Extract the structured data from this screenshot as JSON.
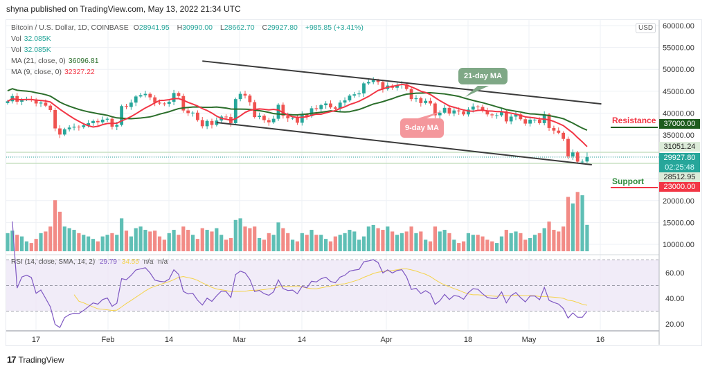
{
  "header": {
    "published": "shyna published on TradingView.com, May 13, 2022 21:34 UTC"
  },
  "legend": {
    "symbol": "Bitcoin / U.S. Dollar, 1D, COINBASE",
    "o_label": "O",
    "o": "28941.95",
    "h_label": "H",
    "h": "30990.00",
    "l_label": "L",
    "l": "28662.70",
    "c_label": "C",
    "c": "29927.80",
    "change": "+985.85 (+3.41%)",
    "vol1_label": "Vol",
    "vol1": "32.085K",
    "vol2_label": "Vol",
    "vol2": "32.085K",
    "ma21_label": "MA (21, close, 0)",
    "ma21": "36096.81",
    "ma9_label": "MA (9, close, 0)",
    "ma9": "32327.22",
    "rsi_label": "RSI (14, close, SMA, 14, 2)",
    "rsi": "29.79",
    "rsi_sma": "34.55",
    "na1": "n/a",
    "na2": "n/a"
  },
  "currency": "USD",
  "annotations": {
    "ma21": "21-day MA",
    "ma9": "9-day MA",
    "resistance": "Resistance",
    "support": "Support"
  },
  "price_tags": {
    "resistance": "37000.00",
    "high_line": "31051.24",
    "last": "29927.80",
    "countdown": "02:25:48",
    "low_line": "28512.95",
    "support": "23000.00"
  },
  "footer": {
    "brand": "TradingView"
  },
  "colors": {
    "up": "#26a69a",
    "down": "#ef5350",
    "ma21": "#2b6e2b",
    "ma9": "#f23645",
    "rsi": "#7e57c2",
    "rsi_sma": "#f5d34a",
    "resistance": "#1e5c1e",
    "support": "#f23645"
  },
  "chart_data": {
    "type": "candlestick",
    "start_date": "2022-01-11",
    "end_date": "2022-05-13",
    "x_ticks": [
      "17",
      "Feb",
      "14",
      "Mar",
      "14",
      "Apr",
      "18",
      "May",
      "16"
    ],
    "y_ticks": [
      "60000.00",
      "55000.00",
      "50000.00",
      "45000.00",
      "40000.00",
      "35000.00",
      "20000.00",
      "15000.00",
      "10000.00"
    ],
    "ylim": [
      8500,
      61500
    ],
    "rsi_ticks": [
      "60.00",
      "40.00",
      "20.00"
    ],
    "rsi_band": [
      30,
      70
    ],
    "closes": [
      42700,
      43900,
      42600,
      43100,
      43200,
      43100,
      42200,
      42400,
      41700,
      40700,
      36500,
      35100,
      36300,
      36700,
      36900,
      36800,
      37200,
      37700,
      38200,
      37900,
      38500,
      38700,
      36900,
      37300,
      41600,
      41400,
      42400,
      43800,
      44100,
      44400,
      43600,
      42400,
      42200,
      42100,
      42600,
      44600,
      43900,
      40600,
      40000,
      40100,
      38400,
      37000,
      38200,
      37300,
      38300,
      39200,
      39100,
      37700,
      43200,
      44400,
      44000,
      42500,
      39100,
      39400,
      38400,
      37900,
      38700,
      41900,
      39400,
      38800,
      38900,
      37800,
      39700,
      39300,
      41100,
      40900,
      41800,
      42200,
      41300,
      41000,
      42400,
      42900,
      44000,
      44300,
      44500,
      46800,
      47100,
      47500,
      47100,
      45500,
      46300,
      45800,
      46400,
      46600,
      45500,
      43200,
      43400,
      42300,
      42800,
      42200,
      39500,
      40100,
      41200,
      39900,
      40600,
      40400,
      39700,
      40800,
      41500,
      41400,
      40500,
      39700,
      39500,
      39500,
      40400,
      38100,
      39200,
      39700,
      38600,
      37600,
      38500,
      38500,
      37700,
      39700,
      36600,
      36000,
      35500,
      34100,
      30100,
      31000,
      28900,
      28900,
      29927.8
    ],
    "last_ohlc": {
      "o": 28941.95,
      "h": 30990.0,
      "l": 28662.7,
      "c": 29927.8
    },
    "volume_k": [
      22,
      25,
      20,
      18,
      12,
      10,
      15,
      22,
      24,
      30,
      62,
      48,
      30,
      28,
      26,
      22,
      20,
      18,
      15,
      12,
      18,
      20,
      22,
      20,
      40,
      25,
      18,
      28,
      30,
      26,
      24,
      25,
      18,
      14,
      22,
      26,
      20,
      30,
      26,
      20,
      15,
      28,
      26,
      24,
      28,
      20,
      14,
      16,
      38,
      40,
      30,
      28,
      30,
      16,
      14,
      22,
      20,
      35,
      28,
      22,
      14,
      12,
      22,
      20,
      26,
      20,
      20,
      15,
      12,
      18,
      20,
      22,
      26,
      24,
      14,
      18,
      30,
      32,
      28,
      26,
      30,
      24,
      20,
      22,
      24,
      30,
      22,
      24,
      14,
      12,
      30,
      24,
      26,
      22,
      14,
      10,
      12,
      22,
      20,
      20,
      18,
      14,
      12,
      10,
      18,
      26,
      22,
      24,
      22,
      14,
      16,
      20,
      22,
      28,
      36,
      26,
      24,
      30,
      66,
      58,
      72,
      68,
      32.085
    ],
    "trendlines": [
      {
        "from": [
          "2022-02-21",
          51900
        ],
        "to": [
          "2022-05-16",
          42100
        ]
      },
      {
        "from": [
          "2022-02-24",
          37850
        ],
        "to": [
          "2022-05-14",
          28200
        ]
      }
    ],
    "levels": {
      "resistance": 37000,
      "support": 23000,
      "upper": 31051.24,
      "lower": 28512.95,
      "last": 29927.8
    },
    "ma_periods": [
      21,
      9
    ],
    "rsi_period": 14
  }
}
